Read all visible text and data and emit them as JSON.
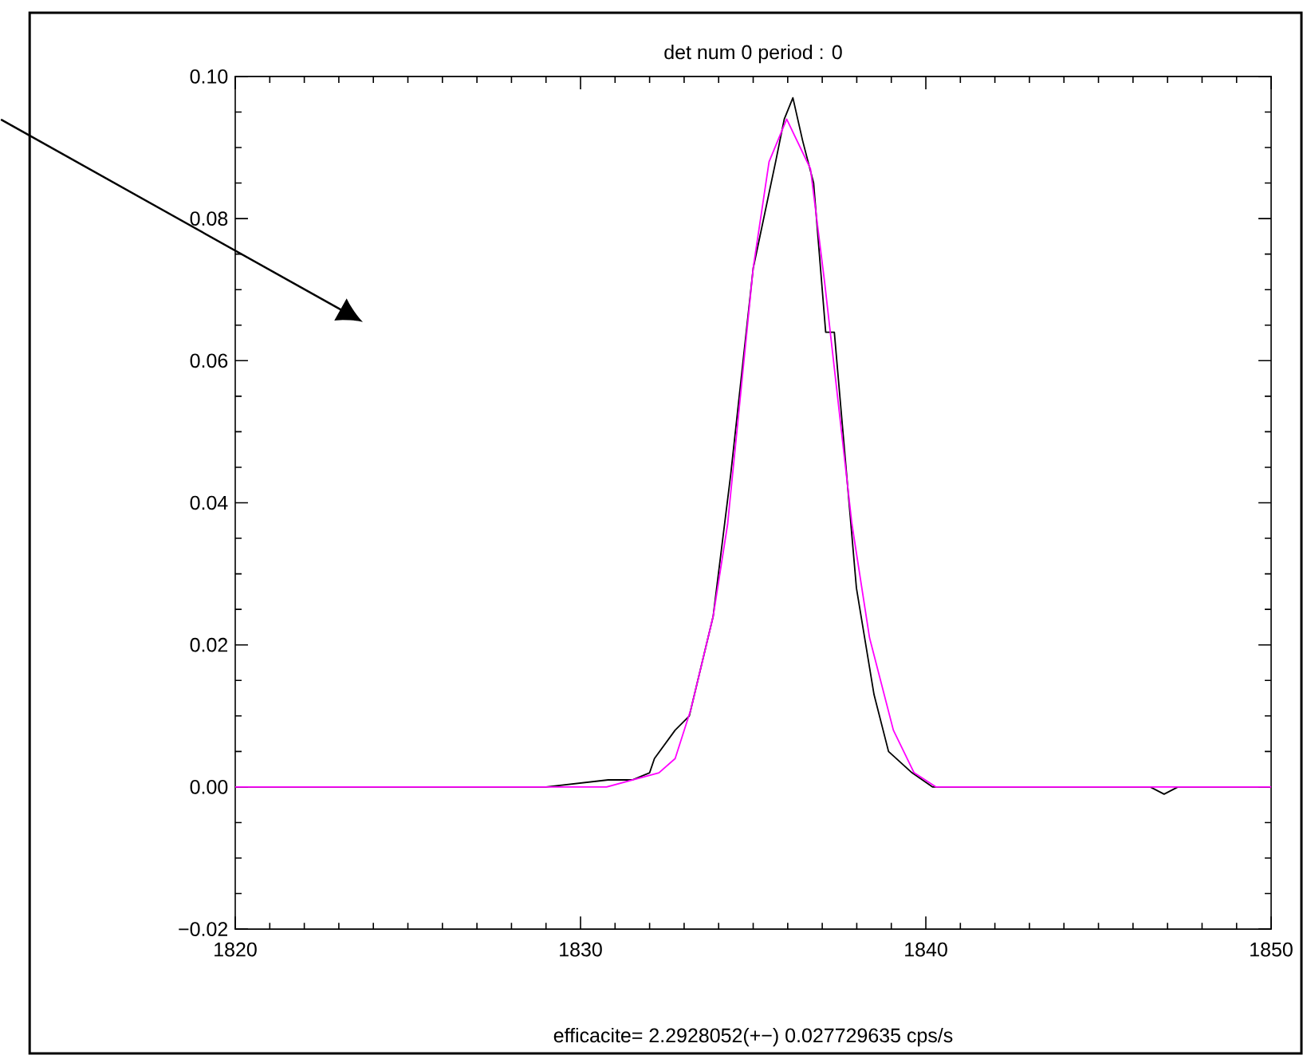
{
  "chart_data": {
    "type": "line",
    "title": "det num 0   period : 0",
    "annotations": [
      "efficacite=  2.2928052(+−) 0.027729635 cps/s"
    ],
    "series": [
      {
        "color": "#000000",
        "x": [
          1820,
          1826,
          1829,
          1830.8,
          1831.5,
          1832,
          1832.14,
          1832.74,
          1833.15,
          1833.84,
          1834.35,
          1835,
          1835.65,
          1835.9,
          1836.15,
          1836.43,
          1836.75,
          1837.1,
          1837.35,
          1837.99,
          1838.5,
          1838.92,
          1839.6,
          1840.2,
          1846.5,
          1846.9,
          1847.3,
          1850
        ],
        "values": [
          0,
          0,
          0,
          0.001,
          0.001,
          0.002,
          0.004,
          0.008,
          0.01,
          0.024,
          0.044,
          0.073,
          0.088,
          0.094,
          0.097,
          0.091,
          0.085,
          0.064,
          0.064,
          0.028,
          0.013,
          0.005,
          0.002,
          0,
          0,
          -0.001,
          0,
          0
        ]
      },
      {
        "color": "#ff00ff",
        "x": [
          1820,
          1830.75,
          1832.27,
          1832.74,
          1833.2,
          1833.84,
          1834.26,
          1835.0,
          1835.46,
          1835.97,
          1836.66,
          1837.07,
          1837.86,
          1838.37,
          1839.06,
          1839.66,
          1840.3,
          1850
        ],
        "values": [
          0,
          0,
          0.002,
          0.004,
          0.011,
          0.024,
          0.037,
          0.073,
          0.088,
          0.094,
          0.087,
          0.071,
          0.037,
          0.021,
          0.008,
          0.002,
          0,
          0
        ]
      }
    ],
    "xlim": [
      1820,
      1850
    ],
    "xticks": [
      1820,
      1830,
      1840,
      1850
    ],
    "ylim": [
      -0.02,
      0.1
    ],
    "yticks": [
      {
        "value": -0.02,
        "label": "−0.02"
      },
      {
        "value": 0,
        "label": "0.00"
      },
      {
        "value": 0.02,
        "label": "0.02"
      },
      {
        "value": 0.04,
        "label": "0.04"
      },
      {
        "value": 0.06,
        "label": "0.06"
      },
      {
        "value": 0.08,
        "label": "0.08"
      },
      {
        "value": 0.1,
        "label": "0.10"
      }
    ],
    "grid": false,
    "marker": "none",
    "line_style": "solid"
  }
}
